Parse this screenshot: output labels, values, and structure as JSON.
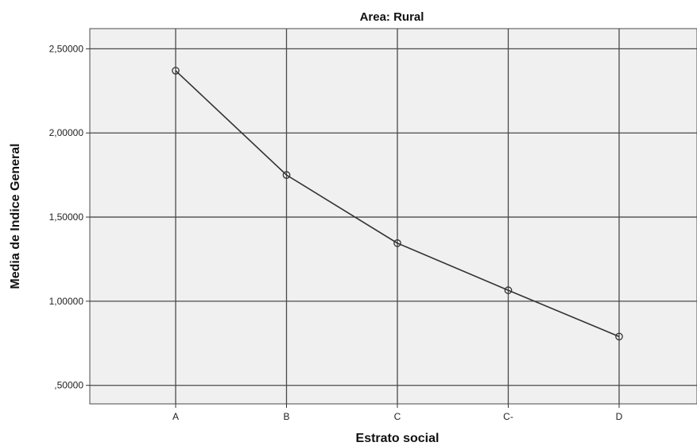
{
  "chart_data": {
    "type": "line",
    "title": "Area: Rural",
    "xlabel": "Estrato social",
    "ylabel": "Media de Indice General",
    "categories": [
      "A",
      "B",
      "C",
      "C-",
      "D"
    ],
    "values": [
      2.37,
      1.75,
      1.345,
      1.065,
      0.79
    ],
    "yticks": [
      0.5,
      1.0,
      1.5,
      2.0,
      2.5
    ],
    "ytick_labels": [
      ",50000",
      "1,00000",
      "1,50000",
      "2,00000",
      "2,50000"
    ],
    "ylim": [
      0.39,
      2.62
    ],
    "grid": true,
    "marker": "open-circle",
    "colors": {
      "line": "#333333",
      "plot_background": "#f0f0f0",
      "grid": "#4a4a4a"
    }
  }
}
